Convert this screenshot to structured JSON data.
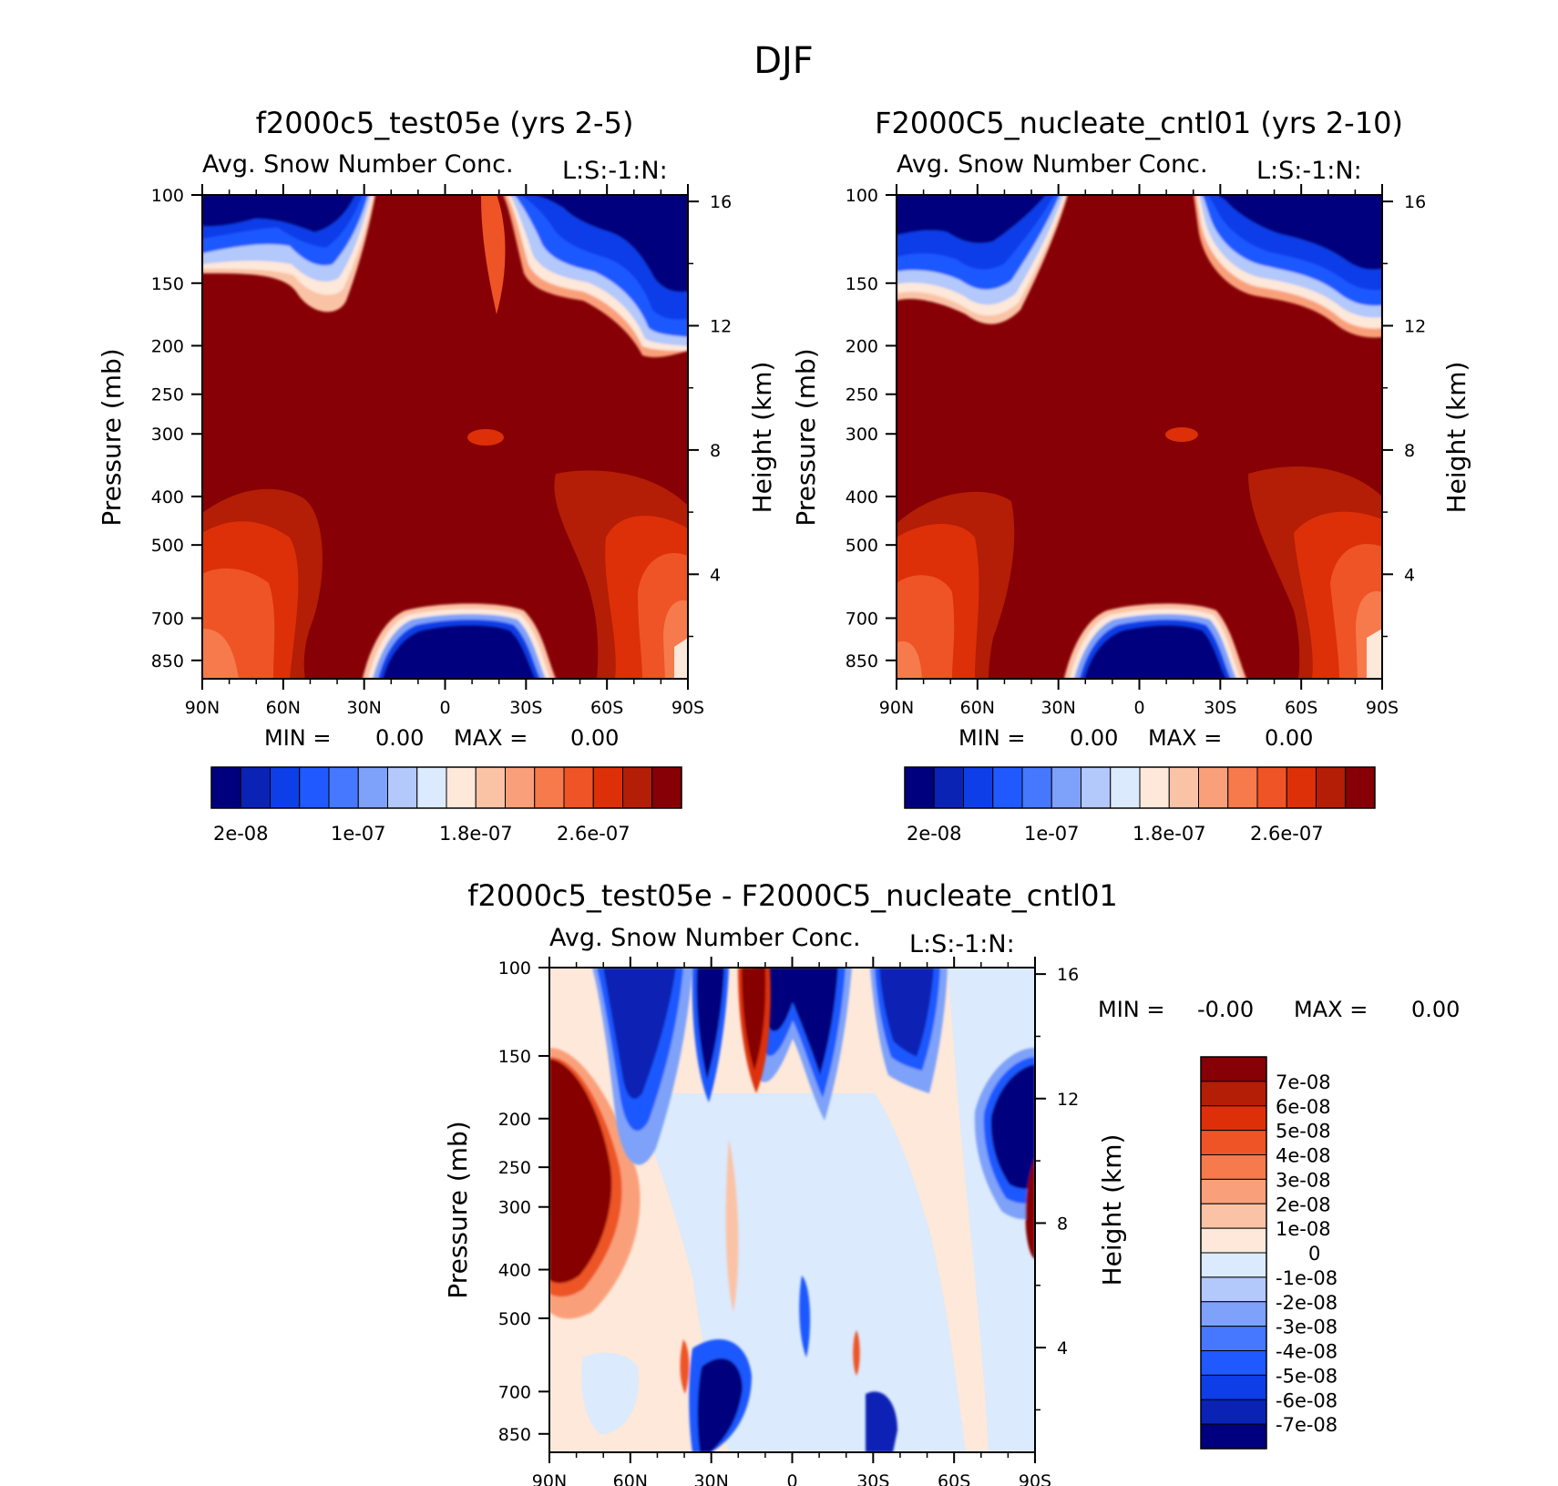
{
  "suptitle": "DJF",
  "colors": {
    "abs_levels": [
      "#00007f",
      "#0a23b5",
      "#0d3ee8",
      "#1f59ff",
      "#4678ff",
      "#7ea1f9",
      "#b3c8fb",
      "#dbeafc",
      "#fde8da",
      "#fbc3a6",
      "#f9a07a",
      "#f67a4c",
      "#ee5426",
      "#dd3008",
      "#b41d06",
      "#870005"
    ],
    "diff_levels": [
      "#00007f",
      "#0a23b5",
      "#0d3ee8",
      "#1f59ff",
      "#4678ff",
      "#7ea1f9",
      "#b3c8fb",
      "#dbeafc",
      "#fde8da",
      "#fbc3a6",
      "#f9a07a",
      "#f67a4c",
      "#ee5426",
      "#dd3008",
      "#b41d06",
      "#870005"
    ]
  },
  "panels": [
    {
      "id": "test",
      "title": "f2000c5_test05e (yrs 2-5)",
      "subtitle": "Avg. Snow Number Conc.",
      "units": "L:S:-1:N:",
      "stats": {
        "min_label": "MIN =",
        "min": "0.00",
        "max_label": "MAX =",
        "max": "0.00"
      }
    },
    {
      "id": "cntl",
      "title": "F2000C5_nucleate_cntl01 (yrs 2-10)",
      "subtitle": "Avg. Snow Number Conc.",
      "units": "L:S:-1:N:",
      "stats": {
        "min_label": "MIN =",
        "min": "0.00",
        "max_label": "MAX =",
        "max": "0.00"
      }
    },
    {
      "id": "diff",
      "title": "f2000c5_test05e - F2000C5_nucleate_cntl01",
      "subtitle": "Avg. Snow Number Conc.",
      "units": "L:S:-1:N:",
      "stats": {
        "min_label": "MIN =",
        "min": "-0.00",
        "max_label": "MAX =",
        "max": "0.00"
      }
    }
  ],
  "chart_data": [
    {
      "type": "heatmap",
      "title": "f2000c5_test05e (yrs 2-5)",
      "subtitle": "Avg. Snow Number Conc.",
      "xlabel": "",
      "ylabel": "Pressure (mb)",
      "ylabel_right": "Height (km)",
      "x_ticks": [
        "90N",
        "60N",
        "30N",
        "0",
        "30S",
        "60S",
        "90S"
      ],
      "x_range": [
        90,
        -90
      ],
      "y_ticks": [
        100,
        150,
        200,
        250,
        300,
        400,
        500,
        700,
        850
      ],
      "y_range_mb": [
        100,
        925
      ],
      "y_right_ticks": [
        16,
        12,
        8,
        4
      ],
      "colorbar_ticks": [
        "2e-08",
        "1e-07",
        "1.8e-07",
        "2.6e-07"
      ],
      "colorbar_levels": [
        1e-08,
        2e-08,
        4e-08,
        6e-08,
        8e-08,
        1e-07,
        1.2e-07,
        1.4e-07,
        1.6e-07,
        1.8e-07,
        2e-07,
        2.2e-07,
        2.4e-07,
        2.6e-07,
        2.8e-07,
        3e-07
      ],
      "regions": [
        {
          "desc": "polar upper troposphere",
          "lat": [
            90,
            40
          ],
          "p": [
            100,
            155
          ],
          "value": 1e-08
        },
        {
          "desc": "polar upper troposphere",
          "lat": [
            -25,
            -90
          ],
          "p": [
            100,
            200
          ],
          "value": 1e-08
        },
        {
          "desc": "tropical lower troposphere",
          "lat": [
            28,
            -27
          ],
          "p": [
            700,
            925
          ],
          "value": 1e-08
        },
        {
          "desc": "high-latitude lower troposphere",
          "lat": [
            90,
            55
          ],
          "p": [
            550,
            925
          ],
          "value": 2.4e-07
        },
        {
          "desc": "high-latitude lower troposphere",
          "lat": [
            -55,
            -90
          ],
          "p": [
            520,
            925
          ],
          "value": 2.4e-07
        },
        {
          "desc": "bulk",
          "lat": [
            90,
            -90
          ],
          "p": [
            100,
            925
          ],
          "value": 3e-07
        }
      ]
    },
    {
      "type": "heatmap",
      "title": "F2000C5_nucleate_cntl01 (yrs 2-10)",
      "subtitle": "Avg. Snow Number Conc.",
      "xlabel": "",
      "ylabel": "Pressure (mb)",
      "ylabel_right": "Height (km)",
      "x_ticks": [
        "90N",
        "60N",
        "30N",
        "0",
        "30S",
        "60S",
        "90S"
      ],
      "x_range": [
        90,
        -90
      ],
      "y_ticks": [
        100,
        150,
        200,
        250,
        300,
        400,
        500,
        700,
        850
      ],
      "y_range_mb": [
        100,
        925
      ],
      "y_right_ticks": [
        16,
        12,
        8,
        4
      ],
      "colorbar_ticks": [
        "2e-08",
        "1e-07",
        "1.8e-07",
        "2.6e-07"
      ],
      "colorbar_levels": [
        1e-08,
        2e-08,
        4e-08,
        6e-08,
        8e-08,
        1e-07,
        1.2e-07,
        1.4e-07,
        1.6e-07,
        1.8e-07,
        2e-07,
        2.2e-07,
        2.4e-07,
        2.6e-07,
        2.8e-07,
        3e-07
      ],
      "regions": [
        {
          "desc": "polar upper troposphere",
          "lat": [
            90,
            30
          ],
          "p": [
            100,
            165
          ],
          "value": 1e-08
        },
        {
          "desc": "polar upper troposphere",
          "lat": [
            -20,
            -90
          ],
          "p": [
            100,
            175
          ],
          "value": 1e-08
        },
        {
          "desc": "tropical lower troposphere",
          "lat": [
            27,
            -25
          ],
          "p": [
            700,
            925
          ],
          "value": 1e-08
        },
        {
          "desc": "high-latitude lower troposphere",
          "lat": [
            90,
            58
          ],
          "p": [
            560,
            925
          ],
          "value": 2.4e-07
        },
        {
          "desc": "high-latitude lower troposphere",
          "lat": [
            -52,
            -90
          ],
          "p": [
            520,
            925
          ],
          "value": 2.4e-07
        },
        {
          "desc": "bulk",
          "lat": [
            90,
            -90
          ],
          "p": [
            100,
            925
          ],
          "value": 3e-07
        }
      ]
    },
    {
      "type": "heatmap",
      "title": "f2000c5_test05e - F2000C5_nucleate_cntl01",
      "subtitle": "Avg. Snow Number Conc.",
      "xlabel": "",
      "ylabel": "Pressure (mb)",
      "ylabel_right": "Height (km)",
      "x_ticks": [
        "90N",
        "60N",
        "30N",
        "0",
        "30S",
        "60S",
        "90S"
      ],
      "x_range": [
        90,
        -90
      ],
      "y_ticks": [
        100,
        150,
        200,
        250,
        300,
        400,
        500,
        700,
        850
      ],
      "y_range_mb": [
        100,
        925
      ],
      "y_right_ticks": [
        16,
        12,
        8,
        4
      ],
      "colorbar_ticks": [
        "7e-08",
        "6e-08",
        "5e-08",
        "4e-08",
        "3e-08",
        "2e-08",
        "1e-08",
        "0",
        "-1e-08",
        "-2e-08",
        "-3e-08",
        "-4e-08",
        "-5e-08",
        "-6e-08",
        "-7e-08"
      ],
      "regions": [
        {
          "desc": "positive, high northern latitudes",
          "lat": [
            90,
            65
          ],
          "p": [
            150,
            420
          ],
          "value": 7e-08
        },
        {
          "desc": "negative columns",
          "lat": [
            75,
            45
          ],
          "p": [
            100,
            260
          ],
          "value": -6e-08
        },
        {
          "desc": "negative columns",
          "lat": [
            40,
            25
          ],
          "p": [
            100,
            200
          ],
          "value": -7e-08
        },
        {
          "desc": "positive column",
          "lat": [
            20,
            10
          ],
          "p": [
            100,
            220
          ],
          "value": 7e-08
        },
        {
          "desc": "negative columns",
          "lat": [
            5,
            -20
          ],
          "p": [
            100,
            200
          ],
          "value": -7e-08
        },
        {
          "desc": "negative columns",
          "lat": [
            -30,
            -55
          ],
          "p": [
            100,
            190
          ],
          "value": -6e-08
        },
        {
          "desc": "negative, high southern latitudes",
          "lat": [
            -68,
            -90
          ],
          "p": [
            150,
            330
          ],
          "value": -7e-08
        },
        {
          "desc": "positive, southern pole edge",
          "lat": [
            -85,
            -90
          ],
          "p": [
            250,
            400
          ],
          "value": 7e-08
        },
        {
          "desc": "negative near surface",
          "lat": [
            30,
            18
          ],
          "p": [
            620,
            925
          ],
          "value": -7e-08
        },
        {
          "desc": "negative near surface",
          "lat": [
            -28,
            -38
          ],
          "p": [
            780,
            925
          ],
          "value": -7e-08
        },
        {
          "desc": "background",
          "lat": [
            90,
            -90
          ],
          "p": [
            100,
            925
          ],
          "value": 0
        }
      ]
    }
  ]
}
